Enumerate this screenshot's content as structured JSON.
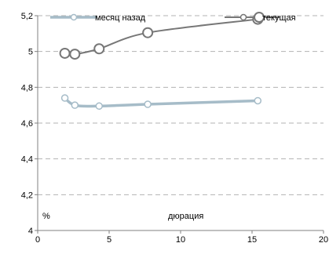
{
  "chart_data": {
    "type": "line",
    "xlabel": "дюрация",
    "ylabel": "%",
    "xlim": [
      0,
      20
    ],
    "ylim": [
      4,
      5.2
    ],
    "x_ticks": [
      "0",
      "5",
      "10",
      "15",
      "20"
    ],
    "y_ticks": [
      "4",
      "4,2",
      "4,4",
      "4,6",
      "4,8",
      "5",
      "5,2"
    ],
    "grid": "horizontal dashed",
    "legend_position": "top",
    "series": [
      {
        "name": "месяц назад",
        "color": "#a6bcc8",
        "marker": "small-hollow-circle",
        "points": [
          {
            "x": 1.9,
            "y": 4.74
          },
          {
            "x": 2.6,
            "y": 4.7
          },
          {
            "x": 4.3,
            "y": 4.695
          },
          {
            "x": 7.7,
            "y": 4.705
          },
          {
            "x": 15.4,
            "y": 4.725
          }
        ]
      },
      {
        "name": "текущая",
        "color": "#777777",
        "marker": "large-hollow-circle",
        "points": [
          {
            "x": 1.9,
            "y": 4.99
          },
          {
            "x": 2.6,
            "y": 4.985
          },
          {
            "x": 4.3,
            "y": 5.015
          },
          {
            "x": 7.7,
            "y": 5.105
          },
          {
            "x": 15.4,
            "y": 5.18
          }
        ]
      }
    ]
  }
}
